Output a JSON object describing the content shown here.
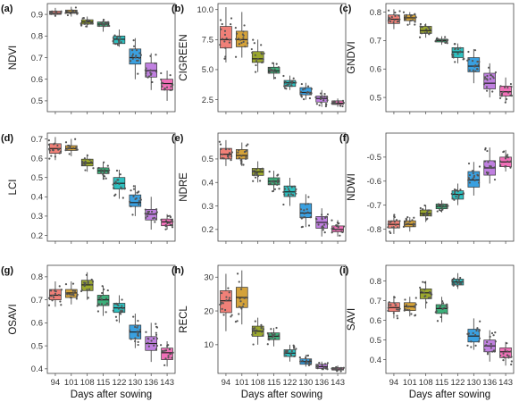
{
  "chart_data": {
    "type": "box",
    "days": [
      "94",
      "101",
      "108",
      "115",
      "122",
      "130",
      "136",
      "143"
    ],
    "xlabel": "Days after sowing",
    "colors": [
      "#f08078",
      "#d4a23a",
      "#9ba82e",
      "#3cb07a",
      "#2ec0c0",
      "#3aa0e0",
      "#c080e0",
      "#f070b8"
    ],
    "panels": [
      {
        "letter": "(a)",
        "ylabel": "NDVI",
        "ylim": [
          0.45,
          0.95
        ],
        "yticks": [
          "0.5",
          "0.6",
          "0.7",
          "0.8",
          "0.9"
        ],
        "ytick_values": [
          0.5,
          0.6,
          0.7,
          0.8,
          0.9
        ],
        "boxes": [
          [
            0.89,
            0.9,
            0.905,
            0.915,
            0.93
          ],
          [
            0.89,
            0.905,
            0.91,
            0.92,
            0.935
          ],
          [
            0.84,
            0.855,
            0.865,
            0.875,
            0.89
          ],
          [
            0.82,
            0.845,
            0.855,
            0.865,
            0.88
          ],
          [
            0.75,
            0.765,
            0.785,
            0.8,
            0.83
          ],
          [
            0.6,
            0.67,
            0.7,
            0.74,
            0.79
          ],
          [
            0.55,
            0.61,
            0.64,
            0.675,
            0.72
          ],
          [
            0.5,
            0.55,
            0.58,
            0.6,
            0.64
          ]
        ]
      },
      {
        "letter": "(b)",
        "ylabel": "CIGREEN",
        "ylim": [
          1.5,
          10.5
        ],
        "yticks": [
          "2.5",
          "5.0",
          "7.5",
          "10.0"
        ],
        "ytick_values": [
          2.5,
          5.0,
          7.5,
          10.0
        ],
        "boxes": [
          [
            5.6,
            6.8,
            7.5,
            8.6,
            10.2
          ],
          [
            6.0,
            6.9,
            7.5,
            8.2,
            9.8
          ],
          [
            4.8,
            5.6,
            5.9,
            6.5,
            7.5
          ],
          [
            4.2,
            4.7,
            4.9,
            5.2,
            5.6
          ],
          [
            3.3,
            3.6,
            3.9,
            4.1,
            4.5
          ],
          [
            2.5,
            2.9,
            3.1,
            3.5,
            3.9
          ],
          [
            1.9,
            2.3,
            2.6,
            2.8,
            3.3
          ],
          [
            1.9,
            2.1,
            2.2,
            2.4,
            2.6
          ]
        ]
      },
      {
        "letter": "(c)",
        "ylabel": "GNDVI",
        "ylim": [
          0.45,
          0.83
        ],
        "yticks": [
          "0.5",
          "0.6",
          "0.7",
          "0.8"
        ],
        "ytick_values": [
          0.5,
          0.6,
          0.7,
          0.8
        ],
        "boxes": [
          [
            0.74,
            0.76,
            0.775,
            0.79,
            0.81
          ],
          [
            0.755,
            0.77,
            0.78,
            0.79,
            0.8
          ],
          [
            0.71,
            0.725,
            0.735,
            0.75,
            0.76
          ],
          [
            0.685,
            0.695,
            0.7,
            0.705,
            0.715
          ],
          [
            0.62,
            0.64,
            0.66,
            0.675,
            0.69
          ],
          [
            0.55,
            0.59,
            0.61,
            0.64,
            0.67
          ],
          [
            0.5,
            0.53,
            0.55,
            0.585,
            0.62
          ],
          [
            0.48,
            0.505,
            0.52,
            0.54,
            0.57
          ]
        ]
      },
      {
        "letter": "(d)",
        "ylabel": "LCI",
        "ylim": [
          0.17,
          0.73
        ],
        "yticks": [
          "0.2",
          "0.3",
          "0.4",
          "0.5",
          "0.6",
          "0.7"
        ],
        "ytick_values": [
          0.2,
          0.3,
          0.4,
          0.5,
          0.6,
          0.7
        ],
        "boxes": [
          [
            0.59,
            0.625,
            0.65,
            0.675,
            0.71
          ],
          [
            0.61,
            0.64,
            0.65,
            0.665,
            0.7
          ],
          [
            0.53,
            0.56,
            0.575,
            0.595,
            0.62
          ],
          [
            0.49,
            0.52,
            0.535,
            0.55,
            0.58
          ],
          [
            0.39,
            0.44,
            0.47,
            0.5,
            0.54
          ],
          [
            0.3,
            0.35,
            0.37,
            0.41,
            0.46
          ],
          [
            0.23,
            0.28,
            0.31,
            0.335,
            0.4
          ],
          [
            0.23,
            0.25,
            0.27,
            0.285,
            0.31
          ]
        ]
      },
      {
        "letter": "(e)",
        "ylabel": "NDRE",
        "ylim": [
          0.15,
          0.61
        ],
        "yticks": [
          "0.2",
          "0.3",
          "0.4",
          "0.5"
        ],
        "ytick_values": [
          0.2,
          0.3,
          0.4,
          0.5
        ],
        "boxes": [
          [
            0.47,
            0.5,
            0.52,
            0.545,
            0.58
          ],
          [
            0.47,
            0.5,
            0.515,
            0.54,
            0.57
          ],
          [
            0.4,
            0.43,
            0.445,
            0.46,
            0.49
          ],
          [
            0.36,
            0.39,
            0.405,
            0.42,
            0.45
          ],
          [
            0.3,
            0.34,
            0.36,
            0.385,
            0.42
          ],
          [
            0.21,
            0.25,
            0.27,
            0.31,
            0.35
          ],
          [
            0.17,
            0.205,
            0.23,
            0.255,
            0.29
          ],
          [
            0.17,
            0.19,
            0.2,
            0.215,
            0.24
          ]
        ]
      },
      {
        "letter": "(f)",
        "ylabel": "NDWI",
        "ylim": [
          -0.85,
          -0.4
        ],
        "yticks": [
          "-0.8",
          "-0.7",
          "-0.6",
          "-0.5"
        ],
        "ytick_values": [
          -0.8,
          -0.7,
          -0.6,
          -0.5
        ],
        "boxes": [
          [
            -0.82,
            -0.795,
            -0.78,
            -0.765,
            -0.74
          ],
          [
            -0.81,
            -0.79,
            -0.78,
            -0.765,
            -0.75
          ],
          [
            -0.77,
            -0.745,
            -0.735,
            -0.72,
            -0.7
          ],
          [
            -0.73,
            -0.715,
            -0.705,
            -0.695,
            -0.68
          ],
          [
            -0.7,
            -0.675,
            -0.655,
            -0.64,
            -0.61
          ],
          [
            -0.66,
            -0.625,
            -0.595,
            -0.56,
            -0.52
          ],
          [
            -0.61,
            -0.575,
            -0.545,
            -0.515,
            -0.46
          ],
          [
            -0.56,
            -0.54,
            -0.52,
            -0.5,
            -0.47
          ]
        ]
      },
      {
        "letter": "(g)",
        "ylabel": "OSAVI",
        "ylim": [
          0.38,
          0.85
        ],
        "yticks": [
          "0.4",
          "0.5",
          "0.6",
          "0.7",
          "0.8"
        ],
        "ytick_values": [
          0.4,
          0.5,
          0.6,
          0.7,
          0.8
        ],
        "boxes": [
          [
            0.67,
            0.7,
            0.72,
            0.745,
            0.78
          ],
          [
            0.68,
            0.71,
            0.73,
            0.745,
            0.78
          ],
          [
            0.7,
            0.74,
            0.765,
            0.785,
            0.82
          ],
          [
            0.63,
            0.675,
            0.7,
            0.72,
            0.76
          ],
          [
            0.6,
            0.645,
            0.665,
            0.685,
            0.72
          ],
          [
            0.49,
            0.53,
            0.56,
            0.59,
            0.64
          ],
          [
            0.43,
            0.48,
            0.51,
            0.54,
            0.6
          ],
          [
            0.41,
            0.44,
            0.47,
            0.49,
            0.52
          ]
        ]
      },
      {
        "letter": "(h)",
        "ylabel": "RECL",
        "ylim": [
          1.5,
          33.5
        ],
        "yticks": [
          "10",
          "20",
          "30"
        ],
        "ytick_values": [
          10,
          20,
          30
        ],
        "boxes": [
          [
            14,
            19.5,
            23,
            26,
            31
          ],
          [
            16,
            21,
            24,
            27,
            32
          ],
          [
            10,
            12.5,
            14,
            15.5,
            18
          ],
          [
            9.5,
            11.5,
            12.5,
            13.5,
            15
          ],
          [
            5,
            6.5,
            7.5,
            8.5,
            10
          ],
          [
            3.5,
            4.2,
            5,
            5.8,
            7
          ],
          [
            2.5,
            3,
            3.5,
            4.2,
            5
          ],
          [
            2,
            2.5,
            2.8,
            3.2,
            3.8
          ]
        ]
      },
      {
        "letter": "(i)",
        "ylabel": "SAVI",
        "ylim": [
          0.33,
          0.88
        ],
        "yticks": [
          "0.4",
          "0.5",
          "0.6",
          "0.7",
          "0.8"
        ],
        "ytick_values": [
          0.4,
          0.5,
          0.6,
          0.7,
          0.8
        ],
        "boxes": [
          [
            0.61,
            0.645,
            0.665,
            0.69,
            0.72
          ],
          [
            0.62,
            0.65,
            0.67,
            0.69,
            0.72
          ],
          [
            0.66,
            0.71,
            0.74,
            0.76,
            0.8
          ],
          [
            0.59,
            0.635,
            0.66,
            0.68,
            0.72
          ],
          [
            0.76,
            0.78,
            0.795,
            0.81,
            0.84
          ],
          [
            0.45,
            0.49,
            0.52,
            0.555,
            0.61
          ],
          [
            0.39,
            0.44,
            0.47,
            0.5,
            0.55
          ],
          [
            0.37,
            0.41,
            0.44,
            0.46,
            0.49
          ]
        ]
      }
    ]
  }
}
